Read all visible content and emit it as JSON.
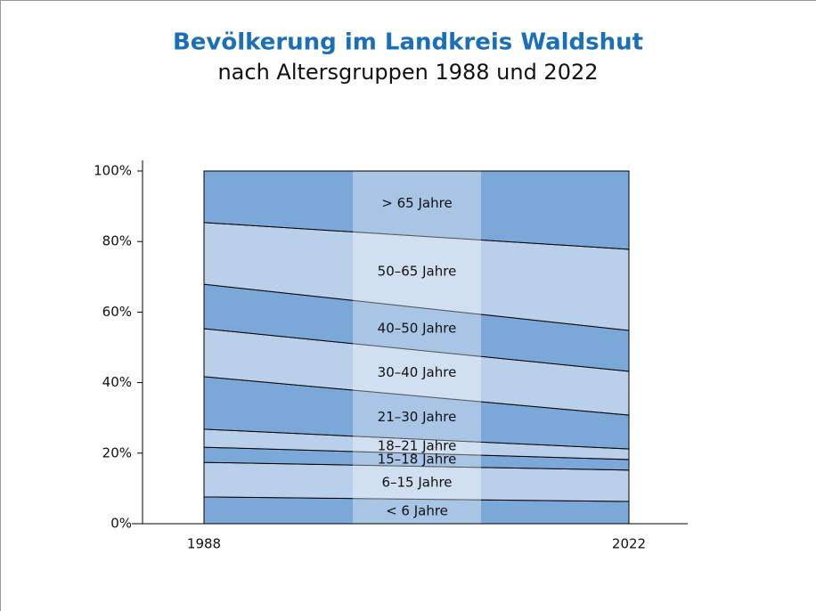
{
  "chart_data": {
    "type": "stacked_area",
    "title": "Bevölkerung im Landkreis Waldshut",
    "subtitle": "nach Altersgruppen 1988 und 2022",
    "categories": [
      "1988",
      "2022"
    ],
    "series": [
      {
        "name": "< 6 Jahre",
        "color": "#7ba7d9",
        "values": [
          7.6,
          6.3
        ]
      },
      {
        "name": "6–15 Jahre",
        "color": "#b9cfea",
        "values": [
          9.8,
          8.9
        ]
      },
      {
        "name": "15–18 Jahre",
        "color": "#7ba7d9",
        "values": [
          4.3,
          3.0
        ]
      },
      {
        "name": "18–21 Jahre",
        "color": "#b9cfea",
        "values": [
          5.1,
          3.0
        ]
      },
      {
        "name": "21–30 Jahre",
        "color": "#7ba7d9",
        "values": [
          14.9,
          9.6
        ]
      },
      {
        "name": "30–40 Jahre",
        "color": "#b9cfea",
        "values": [
          13.6,
          12.4
        ]
      },
      {
        "name": "40–50 Jahre",
        "color": "#7ba7d9",
        "values": [
          12.6,
          11.6
        ]
      },
      {
        "name": "50–65 Jahre",
        "color": "#b9cfea",
        "values": [
          17.5,
          23.0
        ]
      },
      {
        "name": "> 65 Jahre",
        "color": "#7ba7d9",
        "values": [
          14.6,
          22.2
        ]
      }
    ],
    "ylim": [
      0,
      100
    ],
    "yticks": [
      {
        "value": 0,
        "label": "0%"
      },
      {
        "value": 20,
        "label": "20%"
      },
      {
        "value": 40,
        "label": "40%"
      },
      {
        "value": 60,
        "label": "60%"
      },
      {
        "value": 80,
        "label": "80%"
      },
      {
        "value": 100,
        "label": "100%"
      }
    ]
  }
}
